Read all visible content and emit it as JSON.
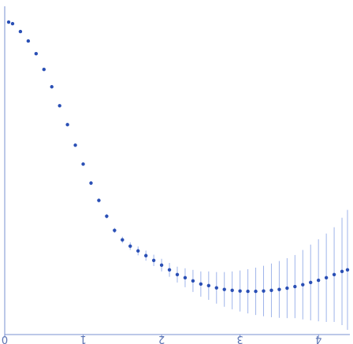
{
  "chart_data": {
    "type": "scatter",
    "title": "",
    "xlabel": "",
    "ylabel": "",
    "xlim": [
      0,
      4.4
    ],
    "ylim": [
      0.0,
      1.04
    ],
    "grid": false,
    "x_ticks": [
      "0",
      "1",
      "2",
      "3",
      "4"
    ],
    "x_tick_values": [
      0,
      1,
      2,
      3,
      4
    ],
    "series": [
      {
        "x": [
          0.05,
          0.1,
          0.2,
          0.3,
          0.4,
          0.5,
          0.6,
          0.7,
          0.8,
          0.9,
          1.0,
          1.1,
          1.2,
          1.3,
          1.4,
          1.5,
          1.6,
          1.7,
          1.8,
          1.9,
          2.0,
          2.1,
          2.2,
          2.3,
          2.4,
          2.5,
          2.6,
          2.7,
          2.8,
          2.9,
          3.0,
          3.1,
          3.2,
          3.3,
          3.4,
          3.5,
          3.6,
          3.7,
          3.8,
          3.9,
          4.0,
          4.1,
          4.2,
          4.3,
          4.37
        ],
        "y": [
          0.99,
          0.985,
          0.96,
          0.93,
          0.89,
          0.84,
          0.785,
          0.725,
          0.665,
          0.6,
          0.54,
          0.48,
          0.425,
          0.375,
          0.33,
          0.3,
          0.28,
          0.265,
          0.25,
          0.235,
          0.22,
          0.205,
          0.19,
          0.18,
          0.17,
          0.16,
          0.155,
          0.148,
          0.143,
          0.14,
          0.138,
          0.137,
          0.137,
          0.138,
          0.14,
          0.143,
          0.147,
          0.152,
          0.158,
          0.165,
          0.172,
          0.18,
          0.19,
          0.2,
          0.205
        ],
        "error": [
          0.003,
          0.003,
          0.003,
          0.003,
          0.003,
          0.004,
          0.004,
          0.004,
          0.005,
          0.005,
          0.005,
          0.006,
          0.006,
          0.007,
          0.008,
          0.01,
          0.012,
          0.014,
          0.016,
          0.018,
          0.02,
          0.022,
          0.025,
          0.03,
          0.035,
          0.04,
          0.045,
          0.05,
          0.055,
          0.06,
          0.065,
          0.07,
          0.075,
          0.08,
          0.085,
          0.09,
          0.095,
          0.1,
          0.11,
          0.12,
          0.13,
          0.14,
          0.15,
          0.17,
          0.19
        ]
      }
    ],
    "colors": {
      "points": "#2a4fb5",
      "error_bars": "#9fb4ea",
      "axis": "#7890d0",
      "tick_text": "#5a73b3"
    }
  }
}
